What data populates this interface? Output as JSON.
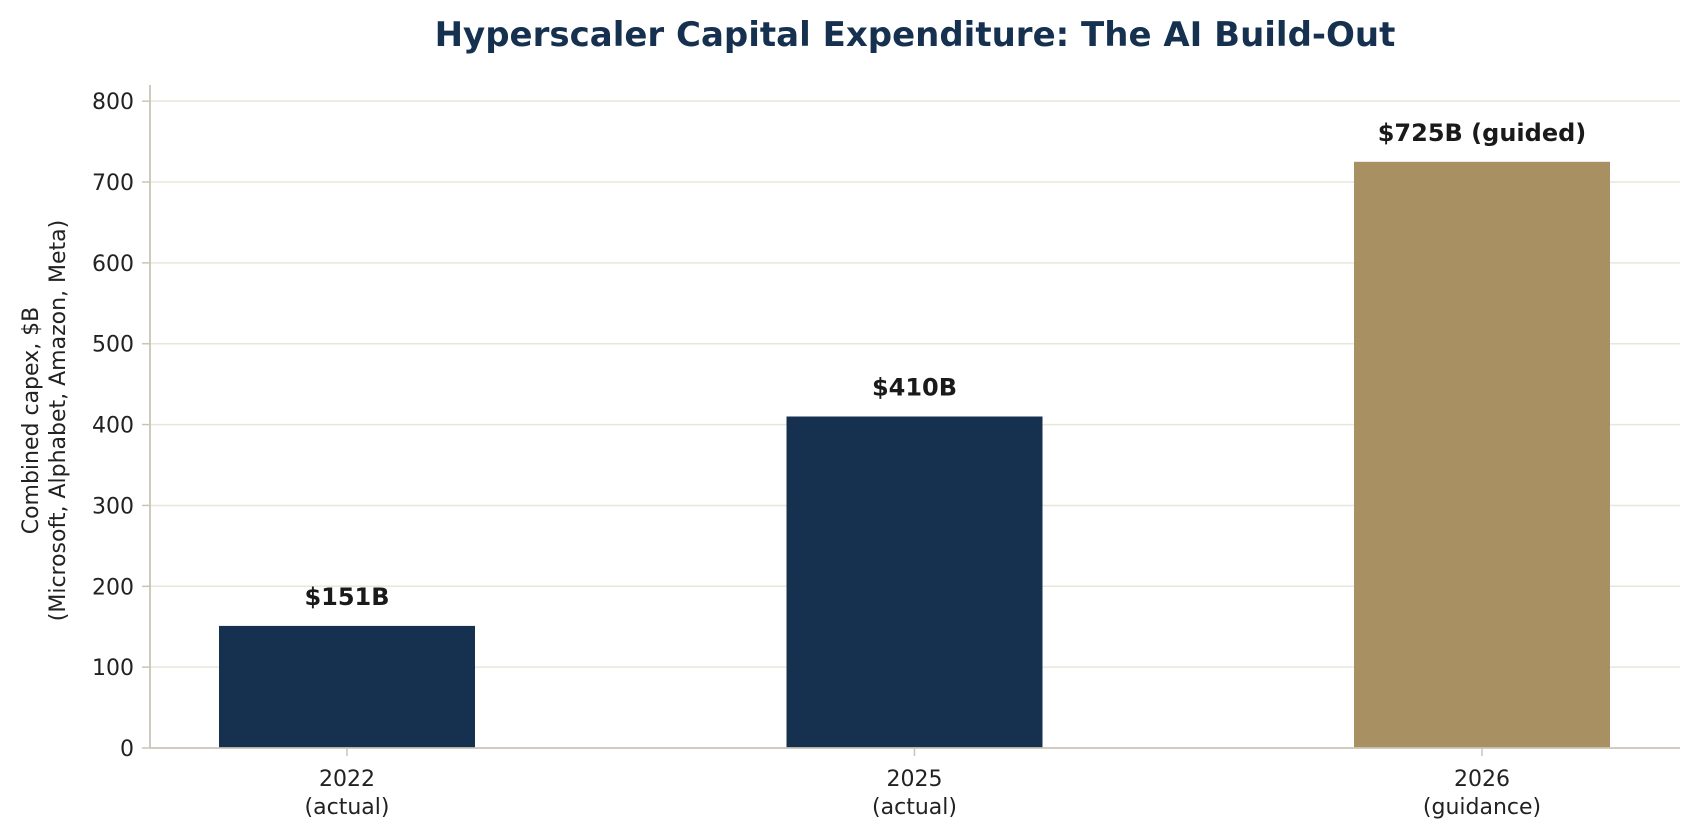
{
  "chart_data": {
    "type": "bar",
    "title": "Hyperscaler Capital Expenditure: The AI Build-Out",
    "xlabel": "",
    "ylabel": [
      "Combined capex, $B",
      "(Microsoft, Alphabet, Amazon, Meta)"
    ],
    "categories": [
      [
        "2022",
        "(actual)"
      ],
      [
        "2025",
        "(actual)"
      ],
      [
        "2026",
        "(guidance)"
      ]
    ],
    "values": [
      151,
      410,
      725
    ],
    "data_labels": [
      "$151B",
      "$410B",
      "$725B (guided)"
    ],
    "bar_colors": [
      "#163150",
      "#163150",
      "#a89062"
    ],
    "ylim": [
      0,
      820
    ],
    "yticks": [
      0,
      100,
      200,
      300,
      400,
      500,
      600,
      700,
      800
    ],
    "grid": "horizontal",
    "legend": "none"
  },
  "colors": {
    "title": "#163150",
    "grid": "#e6e8d8",
    "axis": "#c9c5b6"
  }
}
